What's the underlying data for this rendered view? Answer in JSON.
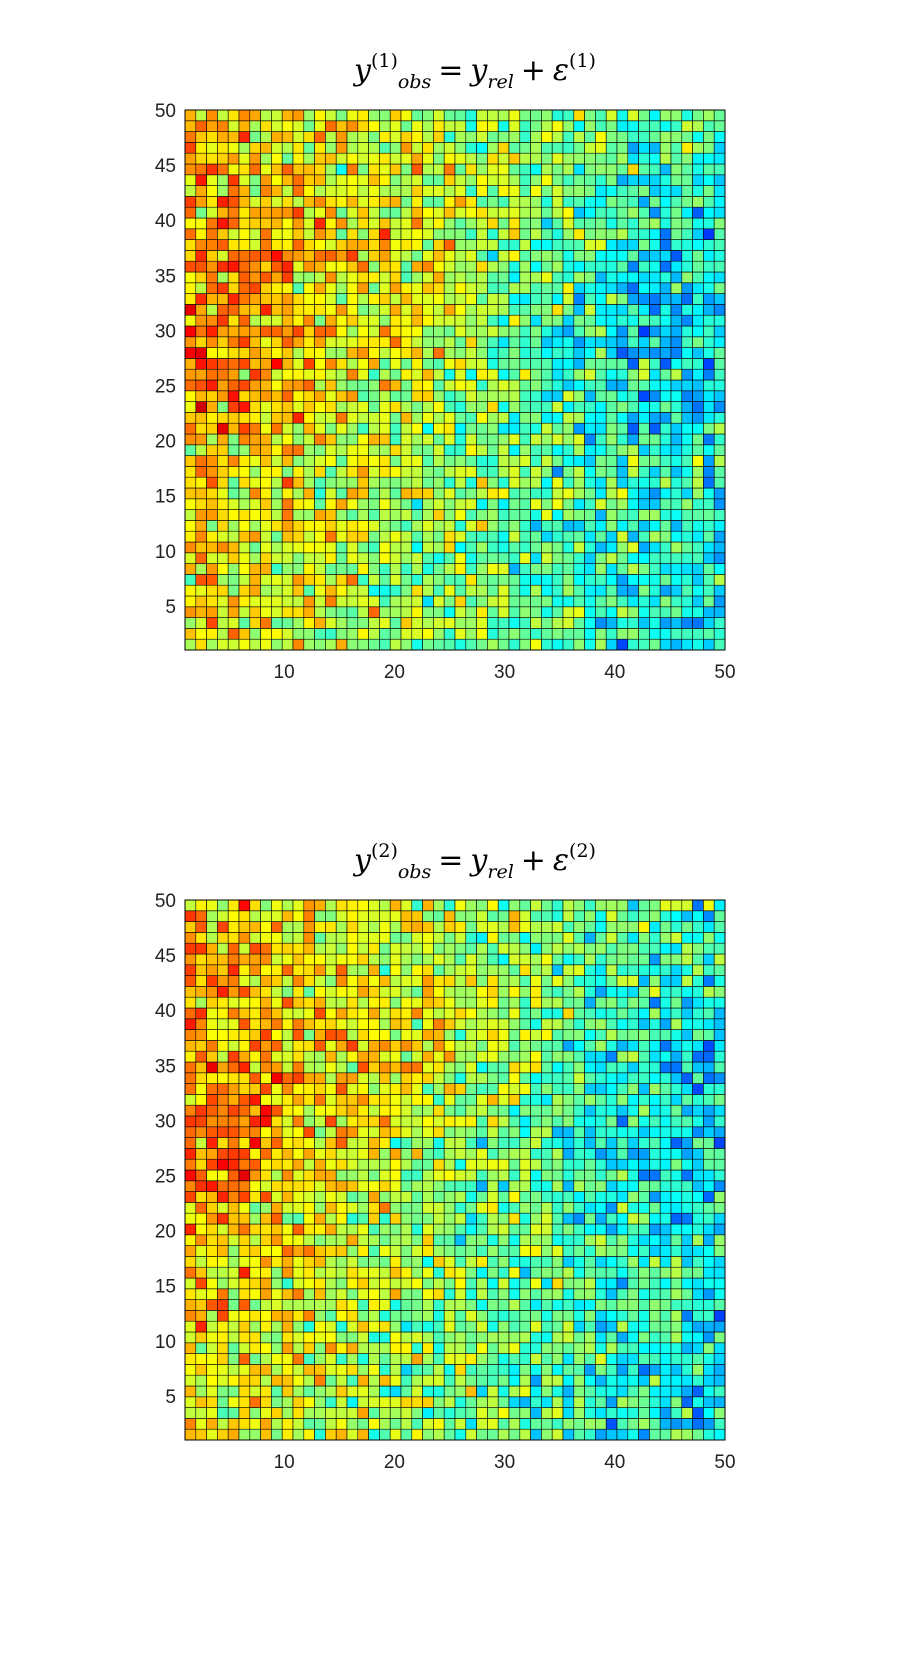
{
  "chart_data": [
    {
      "type": "heatmap",
      "title": {
        "var": "y",
        "sup": "(1)",
        "sub": "obs",
        "equals": "=",
        "rhs_var": "y",
        "rhs_sub": "rel",
        "plus": "+",
        "noise": "ε",
        "noise_sup": "(1)"
      },
      "x_range": [
        1,
        50
      ],
      "y_range": [
        1,
        50
      ],
      "x_ticks": [
        10,
        20,
        30,
        40,
        50
      ],
      "y_ticks": [
        5,
        10,
        15,
        20,
        25,
        30,
        35,
        40,
        45,
        50
      ],
      "grid": true,
      "colormap": "jet",
      "grid_size": 50,
      "seed": 11
    },
    {
      "type": "heatmap",
      "title": {
        "var": "y",
        "sup": "(2)",
        "sub": "obs",
        "equals": "=",
        "rhs_var": "y",
        "rhs_sub": "rel",
        "plus": "+",
        "noise": "ε",
        "noise_sup": "(2)"
      },
      "x_range": [
        1,
        50
      ],
      "y_range": [
        1,
        50
      ],
      "x_ticks": [
        10,
        20,
        30,
        40,
        50
      ],
      "y_ticks": [
        5,
        10,
        15,
        20,
        25,
        30,
        35,
        40,
        45,
        50
      ],
      "grid": true,
      "colormap": "jet",
      "grid_size": 50,
      "seed": 29
    }
  ]
}
